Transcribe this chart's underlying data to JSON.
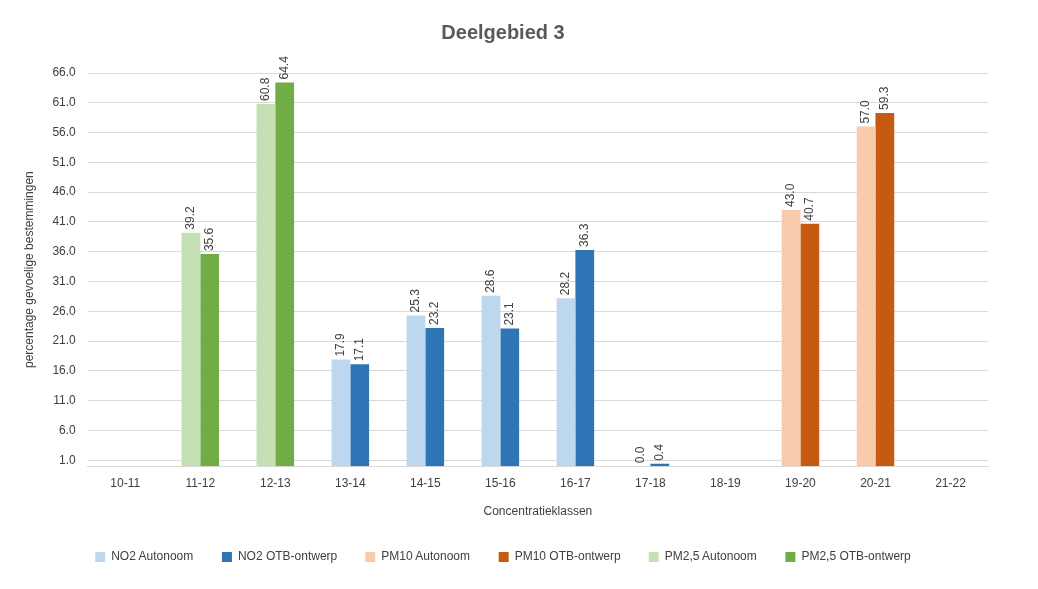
{
  "chart_data": {
    "type": "bar",
    "title": "Deelgebied 3",
    "xlabel": "Concentratieklassen",
    "ylabel": "percentage gevoelige bestemmingen",
    "categories": [
      "10-11",
      "11-12",
      "12-13",
      "13-14",
      "14-15",
      "15-16",
      "16-17",
      "17-18",
      "18-19",
      "19-20",
      "20-21",
      "21-22"
    ],
    "series": [
      {
        "name": "NO2 Autonoom",
        "color": "#bdd7ee",
        "values": [
          null,
          null,
          null,
          17.9,
          25.3,
          28.6,
          28.2,
          0.0,
          null,
          null,
          null,
          null
        ],
        "value_labels": [
          null,
          null,
          null,
          "17.9",
          "25.3",
          "28.6",
          "28.2",
          "0.0",
          null,
          null,
          null,
          null
        ]
      },
      {
        "name": "NO2 OTB-ontwerp",
        "color": "#2e75b6",
        "values": [
          null,
          null,
          null,
          17.1,
          23.2,
          23.1,
          36.3,
          0.4,
          null,
          null,
          null,
          null
        ],
        "value_labels": [
          null,
          null,
          null,
          "17.1",
          "23.2",
          "23.1",
          "36.3",
          "0.4",
          null,
          null,
          null,
          null
        ]
      },
      {
        "name": "PM10 Autonoom",
        "color": "#f8cbad",
        "values": [
          null,
          null,
          null,
          null,
          null,
          null,
          null,
          null,
          null,
          43.0,
          57.0,
          null
        ],
        "value_labels": [
          null,
          null,
          null,
          null,
          null,
          null,
          null,
          null,
          null,
          "43.0",
          "57.0",
          null
        ]
      },
      {
        "name": "PM10 OTB-ontwerp",
        "color": "#c55a11",
        "values": [
          null,
          null,
          null,
          null,
          null,
          null,
          null,
          null,
          null,
          40.7,
          59.3,
          null
        ],
        "value_labels": [
          null,
          null,
          null,
          null,
          null,
          null,
          null,
          null,
          null,
          "40.7",
          "59.3",
          null
        ]
      },
      {
        "name": "PM2,5 Autonoom",
        "color": "#c5e0b4",
        "values": [
          null,
          39.2,
          60.8,
          null,
          null,
          null,
          null,
          null,
          null,
          null,
          null,
          null
        ],
        "value_labels": [
          null,
          "39.2",
          "60.8",
          null,
          null,
          null,
          null,
          null,
          null,
          null,
          null,
          null
        ]
      },
      {
        "name": "PM2,5 OTB-ontwerp",
        "color": "#70ad47",
        "values": [
          null,
          35.6,
          64.4,
          null,
          null,
          null,
          null,
          null,
          null,
          null,
          null,
          null
        ],
        "value_labels": [
          null,
          "35.6",
          "64.4",
          null,
          null,
          null,
          null,
          null,
          null,
          null,
          null,
          null
        ]
      }
    ],
    "ylim": [
      0,
      66
    ],
    "yticks": [
      {
        "value": 1,
        "label": "1.0"
      },
      {
        "value": 6,
        "label": "6.0"
      },
      {
        "value": 11,
        "label": "11.0"
      },
      {
        "value": 16,
        "label": "16.0"
      },
      {
        "value": 21,
        "label": "21.0"
      },
      {
        "value": 26,
        "label": "26.0"
      },
      {
        "value": 31,
        "label": "31.0"
      },
      {
        "value": 36,
        "label": "36.0"
      },
      {
        "value": 41,
        "label": "41.0"
      },
      {
        "value": 46,
        "label": "46.0"
      },
      {
        "value": 51,
        "label": "51.0"
      },
      {
        "value": 56,
        "label": "56.0"
      },
      {
        "value": 61,
        "label": "61.0"
      },
      {
        "value": 66,
        "label": "66.0"
      }
    ],
    "grid": "y",
    "legend": "bottom"
  }
}
